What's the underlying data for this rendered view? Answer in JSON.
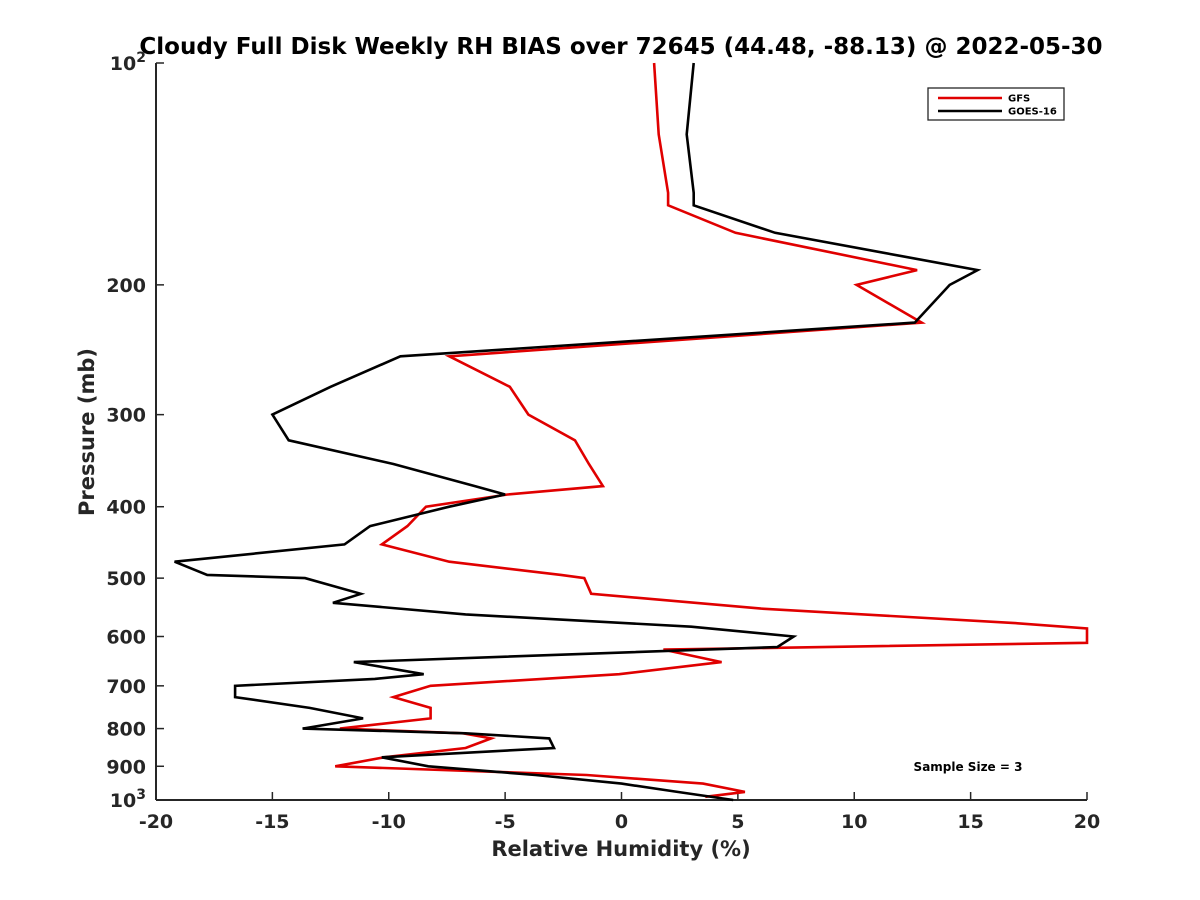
{
  "chart_data": {
    "type": "line",
    "title": "Cloudy Full Disk Weekly RH BIAS over 72645 (44.48, -88.13) @ 2022-05-30",
    "xlabel": "Relative Humidity (%)",
    "ylabel": "Pressure (mb)",
    "xlim": [
      -20,
      20
    ],
    "ylim": [
      100,
      1000
    ],
    "y_scale": "log",
    "y_reversed": true,
    "grid": false,
    "legend_position": "top-right",
    "x_ticks": [
      {
        "value": -20,
        "label": "-20"
      },
      {
        "value": -15,
        "label": "-15"
      },
      {
        "value": -10,
        "label": "-10"
      },
      {
        "value": -5,
        "label": "-5"
      },
      {
        "value": 0,
        "label": "0"
      },
      {
        "value": 5,
        "label": "5"
      },
      {
        "value": 10,
        "label": "10"
      },
      {
        "value": 15,
        "label": "15"
      },
      {
        "value": 20,
        "label": "20"
      }
    ],
    "y_ticks": [
      {
        "value": 100,
        "label": "10",
        "sup": "2"
      },
      {
        "value": 200,
        "label": "200"
      },
      {
        "value": 300,
        "label": "300"
      },
      {
        "value": 400,
        "label": "400"
      },
      {
        "value": 500,
        "label": "500"
      },
      {
        "value": 600,
        "label": "600"
      },
      {
        "value": 700,
        "label": "700"
      },
      {
        "value": 800,
        "label": "800"
      },
      {
        "value": 900,
        "label": "900"
      },
      {
        "value": 1000,
        "label": "10",
        "sup": "3"
      }
    ],
    "series": [
      {
        "name": "GFS",
        "color": "#e00000",
        "points": [
          [
            1.4,
            100
          ],
          [
            1.6,
            125
          ],
          [
            2.0,
            150
          ],
          [
            2.0,
            156
          ],
          [
            4.9,
            170
          ],
          [
            12.7,
            191
          ],
          [
            10.1,
            200
          ],
          [
            12.9,
            225
          ],
          [
            -7.4,
            250
          ],
          [
            -4.8,
            275
          ],
          [
            -4.0,
            300
          ],
          [
            -2.0,
            325
          ],
          [
            -1.4,
            350
          ],
          [
            -0.8,
            375
          ],
          [
            -4.9,
            385
          ],
          [
            -8.4,
            400
          ],
          [
            -9.2,
            425
          ],
          [
            -10.3,
            450
          ],
          [
            -7.4,
            475
          ],
          [
            -2.6,
            495
          ],
          [
            -1.6,
            500
          ],
          [
            -1.3,
            525
          ],
          [
            6.0,
            550
          ],
          [
            16.8,
            575
          ],
          [
            20.0,
            585
          ],
          [
            20.0,
            612
          ],
          [
            1.8,
            625
          ],
          [
            4.3,
            650
          ],
          [
            -0.1,
            675
          ],
          [
            -8.2,
            700
          ],
          [
            -9.8,
            725
          ],
          [
            -8.2,
            750
          ],
          [
            -8.2,
            775
          ],
          [
            -12.1,
            800
          ],
          [
            -6.8,
            812
          ],
          [
            -5.6,
            825
          ],
          [
            -6.7,
            850
          ],
          [
            -10.2,
            875
          ],
          [
            -12.3,
            900
          ],
          [
            -1.5,
            925
          ],
          [
            3.5,
            950
          ],
          [
            5.3,
            975
          ],
          [
            3.6,
            990
          ]
        ]
      },
      {
        "name": "GOES-16",
        "color": "#000000",
        "points": [
          [
            3.1,
            100
          ],
          [
            2.8,
            125
          ],
          [
            3.1,
            150
          ],
          [
            3.1,
            156
          ],
          [
            6.6,
            170
          ],
          [
            15.3,
            191
          ],
          [
            14.1,
            200
          ],
          [
            12.6,
            225
          ],
          [
            -9.5,
            250
          ],
          [
            -12.5,
            275
          ],
          [
            -15.0,
            300
          ],
          [
            -14.3,
            325
          ],
          [
            -9.8,
            350
          ],
          [
            -6.3,
            375
          ],
          [
            -5.0,
            385
          ],
          [
            -7.4,
            400
          ],
          [
            -10.8,
            425
          ],
          [
            -11.9,
            450
          ],
          [
            -19.2,
            475
          ],
          [
            -17.8,
            495
          ],
          [
            -13.6,
            500
          ],
          [
            -11.2,
            525
          ],
          [
            -12.4,
            540
          ],
          [
            -6.7,
            560
          ],
          [
            3.0,
            582
          ],
          [
            7.4,
            600
          ],
          [
            6.7,
            620
          ],
          [
            -11.5,
            650
          ],
          [
            -8.5,
            675
          ],
          [
            -10.6,
            685
          ],
          [
            -16.6,
            700
          ],
          [
            -16.6,
            725
          ],
          [
            -13.4,
            750
          ],
          [
            -11.1,
            775
          ],
          [
            -13.7,
            800
          ],
          [
            -6.7,
            812
          ],
          [
            -3.1,
            825
          ],
          [
            -2.9,
            850
          ],
          [
            -10.3,
            875
          ],
          [
            -8.3,
            900
          ],
          [
            -3.7,
            925
          ],
          [
            0.0,
            950
          ],
          [
            2.4,
            975
          ],
          [
            4.8,
            1000
          ]
        ]
      }
    ],
    "annotations": [
      {
        "text": "Sample Size = 3"
      }
    ]
  }
}
